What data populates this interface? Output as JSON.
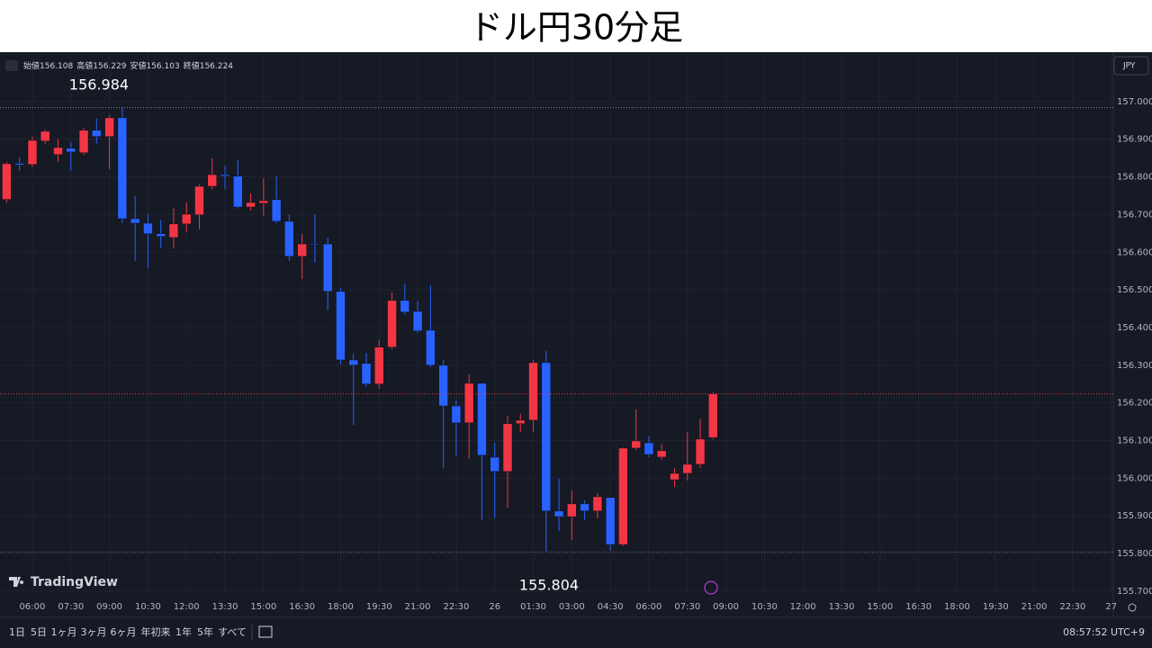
{
  "chart_data": {
    "type": "candlestick",
    "title": "ドル円30分足",
    "ohlc_legend": [
      {
        "label": "始値",
        "value": 156.108
      },
      {
        "label": "高値",
        "value": 156.229
      },
      {
        "label": "安値",
        "value": 156.103
      },
      {
        "label": "終値",
        "value": 156.224
      }
    ],
    "currency": "JPY",
    "brand": "TradingView",
    "up_color": "#f23645",
    "down_color": "#2962ff",
    "grid": true,
    "x": [
      5,
      5.5,
      6,
      6.5,
      7,
      7.5,
      8,
      8.5,
      9,
      9.5,
      10,
      10.5,
      11,
      11.5,
      12,
      12.5,
      13,
      13.5,
      14,
      14.5,
      15,
      15.5,
      16,
      16.5,
      17,
      17.5,
      18,
      18.5,
      19,
      19.5,
      20,
      20.5,
      21,
      21.5,
      22,
      22.5,
      23,
      23.5,
      24,
      24.5,
      25,
      25.5,
      26,
      26.5,
      27,
      27.5,
      28,
      28.5,
      29,
      29.5,
      30,
      30.5,
      31,
      31.5,
      32,
      32.5
    ],
    "open": [
      156.74,
      156.836,
      156.833,
      156.895,
      156.859,
      156.876,
      156.864,
      156.924,
      156.907,
      156.957,
      156.689,
      156.677,
      156.649,
      156.639,
      156.675,
      156.699,
      156.775,
      156.806,
      156.802,
      156.72,
      156.73,
      156.74,
      156.682,
      156.589,
      156.622,
      156.622,
      156.496,
      156.314,
      156.305,
      156.25,
      156.348,
      156.472,
      156.443,
      156.393,
      156.3,
      156.192,
      156.147,
      156.252,
      156.056,
      156.018,
      156.145,
      156.154,
      156.307,
      155.913,
      155.898,
      155.932,
      155.913,
      155.949,
      155.824,
      156.08,
      156.094,
      156.056,
      155.996,
      156.013,
      156.037,
      156.108
    ],
    "high": [
      156.84,
      156.852,
      156.907,
      156.926,
      156.9,
      156.892,
      156.931,
      156.955,
      156.964,
      156.984,
      156.749,
      156.701,
      156.685,
      156.716,
      156.732,
      156.78,
      156.849,
      156.83,
      156.845,
      156.756,
      156.797,
      156.802,
      156.701,
      156.649,
      156.701,
      156.639,
      156.505,
      156.331,
      156.333,
      156.367,
      156.493,
      156.517,
      156.47,
      156.512,
      156.314,
      156.207,
      156.276,
      156.252,
      156.094,
      156.166,
      156.171,
      156.314,
      156.338,
      155.999,
      155.968,
      155.941,
      155.961,
      155.949,
      156.082,
      156.183,
      156.111,
      156.09,
      156.027,
      156.123,
      156.157,
      156.229
    ],
    "low": [
      156.732,
      156.816,
      156.826,
      156.888,
      156.84,
      156.816,
      156.859,
      156.888,
      156.821,
      156.677,
      156.577,
      156.558,
      156.611,
      156.611,
      156.654,
      156.661,
      156.768,
      156.768,
      156.716,
      156.711,
      156.697,
      156.677,
      156.577,
      156.529,
      156.572,
      156.446,
      156.302,
      156.142,
      156.243,
      156.238,
      156.343,
      156.434,
      156.386,
      156.295,
      156.027,
      156.059,
      156.051,
      155.889,
      155.894,
      155.922,
      156.123,
      156.123,
      155.804,
      155.86,
      155.836,
      155.889,
      155.894,
      155.808,
      155.82,
      156.075,
      156.056,
      156.049,
      155.977,
      155.994,
      156.027,
      156.103
    ],
    "close": [
      156.835,
      156.832,
      156.897,
      156.921,
      156.878,
      156.866,
      156.924,
      156.907,
      156.957,
      156.689,
      156.677,
      156.649,
      156.642,
      156.675,
      156.701,
      156.775,
      156.806,
      156.802,
      156.72,
      156.732,
      156.737,
      156.682,
      156.589,
      156.622,
      156.62,
      156.496,
      156.314,
      156.3,
      156.25,
      156.348,
      156.472,
      156.441,
      156.391,
      156.3,
      156.192,
      156.147,
      156.252,
      156.061,
      156.018,
      156.145,
      156.154,
      156.307,
      155.913,
      155.898,
      155.932,
      155.913,
      155.951,
      155.824,
      156.08,
      156.099,
      156.063,
      156.073,
      156.013,
      156.037,
      156.104,
      156.224
    ],
    "annotations": [
      156.984,
      155.804
    ],
    "xlim": [
      4.74,
      48.08
    ],
    "xticks": [
      {
        "value": 6,
        "label": "06:00"
      },
      {
        "value": 7.5,
        "label": "07:30"
      },
      {
        "value": 9,
        "label": "09:00"
      },
      {
        "value": 10.5,
        "label": "10:30"
      },
      {
        "value": 12,
        "label": "12:00"
      },
      {
        "value": 13.5,
        "label": "13:30"
      },
      {
        "value": 15,
        "label": "15:00"
      },
      {
        "value": 16.5,
        "label": "16:30"
      },
      {
        "value": 18,
        "label": "18:00"
      },
      {
        "value": 19.5,
        "label": "19:30"
      },
      {
        "value": 21,
        "label": "21:00"
      },
      {
        "value": 22.5,
        "label": "22:30"
      },
      {
        "value": 24,
        "label": "26"
      },
      {
        "value": 25.5,
        "label": "01:30"
      },
      {
        "value": 27,
        "label": "03:00"
      },
      {
        "value": 28.5,
        "label": "04:30"
      },
      {
        "value": 30,
        "label": "06:00"
      },
      {
        "value": 31.5,
        "label": "07:30"
      },
      {
        "value": 33,
        "label": "09:00"
      },
      {
        "value": 34.5,
        "label": "10:30"
      },
      {
        "value": 36,
        "label": "12:00"
      },
      {
        "value": 37.5,
        "label": "13:30"
      },
      {
        "value": 39,
        "label": "15:00"
      },
      {
        "value": 40.5,
        "label": "16:30"
      },
      {
        "value": 42,
        "label": "18:00"
      },
      {
        "value": 43.5,
        "label": "19:30"
      },
      {
        "value": 45,
        "label": "21:00"
      },
      {
        "value": 46.5,
        "label": "22:30"
      },
      {
        "value": 48,
        "label": "27"
      }
    ],
    "ylim": [
      155.633,
      157.131
    ],
    "yticks": [
      {
        "value": 155.7,
        "label": "155.700"
      },
      {
        "value": 155.8,
        "label": "155.800"
      },
      {
        "value": 155.9,
        "label": "155.900"
      },
      {
        "value": 156.0,
        "label": "156.000"
      },
      {
        "value": 156.1,
        "label": "156.100"
      },
      {
        "value": 156.2,
        "label": "156.200"
      },
      {
        "value": 156.3,
        "label": "156.300"
      },
      {
        "value": 156.4,
        "label": "156.400"
      },
      {
        "value": 156.5,
        "label": "156.500"
      },
      {
        "value": 156.6,
        "label": "156.600"
      },
      {
        "value": 156.7,
        "label": "156.700"
      },
      {
        "value": 156.8,
        "label": "156.800"
      },
      {
        "value": 156.9,
        "label": "156.900"
      },
      {
        "value": 157.0,
        "label": "157.000"
      }
    ],
    "ranges": [
      "1日",
      "5日",
      "1ヶ月",
      "3ヶ月",
      "6ヶ月",
      "年初来",
      "1年",
      "5年",
      "すべて"
    ],
    "clock": "08:57:52 UTC+9"
  }
}
